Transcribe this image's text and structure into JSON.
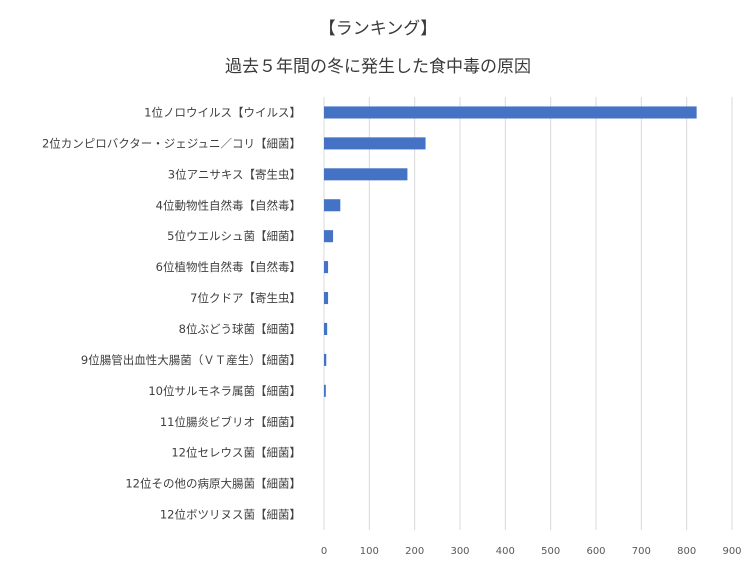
{
  "chart_data": {
    "type": "bar",
    "orientation": "horizontal",
    "title": "【ランキング】",
    "subtitle": "過去５年間の冬に発生した食中毒の原因",
    "categories": [
      "1位ノロウイルス【ウイルス】",
      "2位カンピロバクター・ジェジュニ／コリ【細菌】",
      "3位アニサキス【寄生虫】",
      "4位動物性自然毒【自然毒】",
      "5位ウエルシュ菌【細菌】",
      "6位植物性自然毒【自然毒】",
      "7位クドア【寄生虫】",
      "8位ぶどう球菌【細菌】",
      "9位腸管出血性大腸菌（ＶＴ産生）【細菌】",
      "10位サルモネラ属菌【細菌】",
      "11位腸炎ビブリオ【細菌】",
      "12位セレウス菌【細菌】",
      "12位その他の病原大腸菌【細菌】",
      "12位ボツリヌス菌【細菌】"
    ],
    "values": [
      822,
      224,
      184,
      36,
      20,
      9,
      9,
      7,
      5,
      4,
      0,
      0,
      0,
      0
    ],
    "xlim": [
      0,
      900
    ],
    "xticks": [
      0,
      100,
      200,
      300,
      400,
      500,
      600,
      700,
      800,
      900
    ],
    "xlabel": "",
    "ylabel": "",
    "grid": true,
    "legend": "none",
    "bar_color": "#4472c4"
  }
}
